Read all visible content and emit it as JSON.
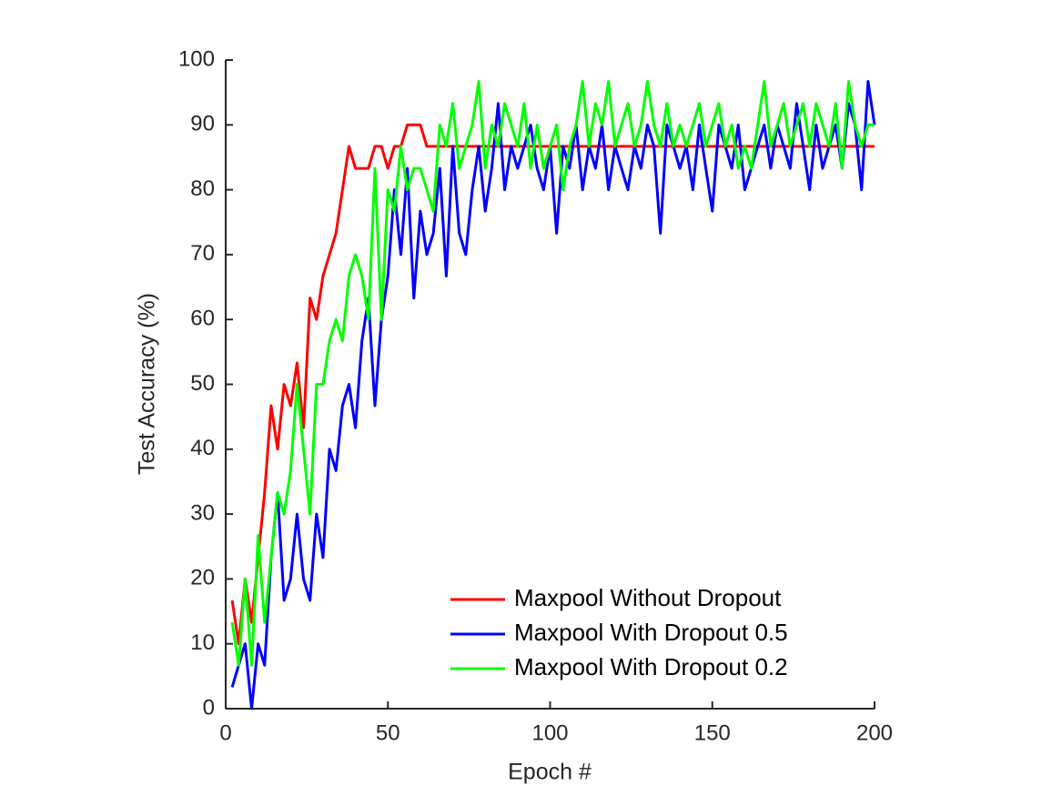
{
  "chart_data": {
    "type": "line",
    "xlabel": "Epoch #",
    "ylabel": "Test Accuracy (%)",
    "x": [
      2,
      4,
      6,
      8,
      10,
      12,
      14,
      16,
      18,
      20,
      22,
      24,
      26,
      28,
      30,
      32,
      34,
      36,
      38,
      40,
      42,
      44,
      46,
      48,
      50,
      52,
      54,
      56,
      58,
      60,
      62,
      64,
      66,
      68,
      70,
      72,
      74,
      76,
      78,
      80,
      82,
      84,
      86,
      88,
      90,
      92,
      94,
      96,
      98,
      100,
      102,
      104,
      106,
      108,
      110,
      112,
      114,
      116,
      118,
      120,
      122,
      124,
      126,
      128,
      130,
      132,
      134,
      136,
      138,
      140,
      142,
      144,
      146,
      148,
      150,
      152,
      154,
      156,
      158,
      160,
      162,
      164,
      166,
      168,
      170,
      172,
      174,
      176,
      178,
      180,
      182,
      184,
      186,
      188,
      190,
      192,
      194,
      196,
      198,
      200
    ],
    "series": [
      {
        "name": "Maxpool Without Dropout",
        "color": "#ff0000",
        "values": [
          16.7,
          10,
          20,
          13.3,
          23.3,
          33.3,
          46.7,
          40,
          50,
          46.7,
          53.3,
          43.3,
          63.3,
          60,
          66.7,
          70,
          73.3,
          80,
          86.7,
          83.3,
          83.3,
          83.3,
          86.7,
          86.7,
          83.3,
          86.7,
          86.7,
          90,
          90,
          90,
          86.7,
          86.7,
          86.7,
          86.7,
          86.7,
          86.7,
          86.7,
          86.7,
          86.7,
          86.7,
          86.7,
          86.7,
          86.7,
          86.7,
          86.7,
          86.7,
          86.7,
          86.7,
          86.7,
          86.7,
          86.7,
          86.7,
          86.7,
          86.7,
          86.7,
          86.7,
          86.7,
          86.7,
          86.7,
          86.7,
          86.7,
          86.7,
          86.7,
          86.7,
          86.7,
          86.7,
          86.7,
          86.7,
          86.7,
          86.7,
          86.7,
          86.7,
          86.7,
          86.7,
          86.7,
          86.7,
          86.7,
          86.7,
          86.7,
          86.7,
          86.7,
          86.7,
          86.7,
          86.7,
          86.7,
          86.7,
          86.7,
          86.7,
          86.7,
          86.7,
          86.7,
          86.7,
          86.7,
          86.7,
          86.7,
          86.7,
          86.7,
          86.7,
          86.7,
          86.7
        ]
      },
      {
        "name": "Maxpool With Dropout 0.5",
        "color": "#0000ff",
        "values": [
          3.3,
          6.7,
          10,
          0,
          10,
          6.7,
          23.3,
          33.3,
          16.7,
          20,
          30,
          20,
          16.7,
          30,
          23.3,
          40,
          36.7,
          46.7,
          50,
          43.3,
          56.7,
          63.3,
          46.7,
          60,
          66.7,
          80,
          70,
          83.3,
          63.3,
          76.7,
          70,
          73.3,
          83.3,
          66.7,
          86.7,
          73.3,
          70,
          80,
          86.7,
          76.7,
          83.3,
          93.3,
          80,
          86.7,
          83.3,
          86.7,
          90,
          83.3,
          80,
          86.7,
          73.3,
          86.7,
          83.3,
          90,
          80,
          86.7,
          83.3,
          90,
          80,
          86.7,
          83.3,
          80,
          86.7,
          83.3,
          90,
          86.7,
          73.3,
          90,
          86.7,
          83.3,
          86.7,
          80,
          90,
          83.3,
          76.7,
          90,
          86.7,
          83.3,
          90,
          80,
          83.3,
          86.7,
          90,
          83.3,
          90,
          86.7,
          83.3,
          93.3,
          86.7,
          80,
          90,
          83.3,
          86.7,
          90,
          83.3,
          93.3,
          90,
          80,
          96.7,
          90
        ]
      },
      {
        "name": "Maxpool With Dropout 0.2",
        "color": "#00ff00",
        "values": [
          13.3,
          6.7,
          20,
          6.7,
          26.7,
          13.3,
          23.3,
          33.3,
          30,
          36.7,
          50,
          40,
          30,
          50,
          50,
          56.7,
          60,
          56.7,
          66.7,
          70,
          66.7,
          60,
          83.3,
          60,
          80,
          76.7,
          86.7,
          80,
          83.3,
          83.3,
          80,
          76.7,
          90,
          86.7,
          93.3,
          83.3,
          86.7,
          90,
          96.7,
          83.3,
          90,
          86.7,
          93.3,
          90,
          86.7,
          93.3,
          83.3,
          90,
          83.3,
          86.7,
          90,
          80,
          86.7,
          90,
          96.7,
          86.7,
          93.3,
          90,
          96.7,
          86.7,
          90,
          93.3,
          86.7,
          90,
          96.7,
          90,
          86.7,
          93.3,
          86.7,
          90,
          86.7,
          90,
          93.3,
          86.7,
          90,
          93.3,
          86.7,
          90,
          83.3,
          86.7,
          83.3,
          90,
          96.7,
          86.7,
          90,
          93.3,
          86.7,
          90,
          93.3,
          86.7,
          93.3,
          90,
          86.7,
          93.3,
          83.3,
          96.7,
          90,
          86.7,
          90,
          90
        ]
      }
    ],
    "xlim": [
      0,
      200
    ],
    "xticks": [
      0,
      50,
      100,
      150,
      200
    ],
    "ylim": [
      0,
      100
    ],
    "yticks": [
      0,
      10,
      20,
      30,
      40,
      50,
      60,
      70,
      80,
      90,
      100
    ],
    "legend": "lower right"
  }
}
